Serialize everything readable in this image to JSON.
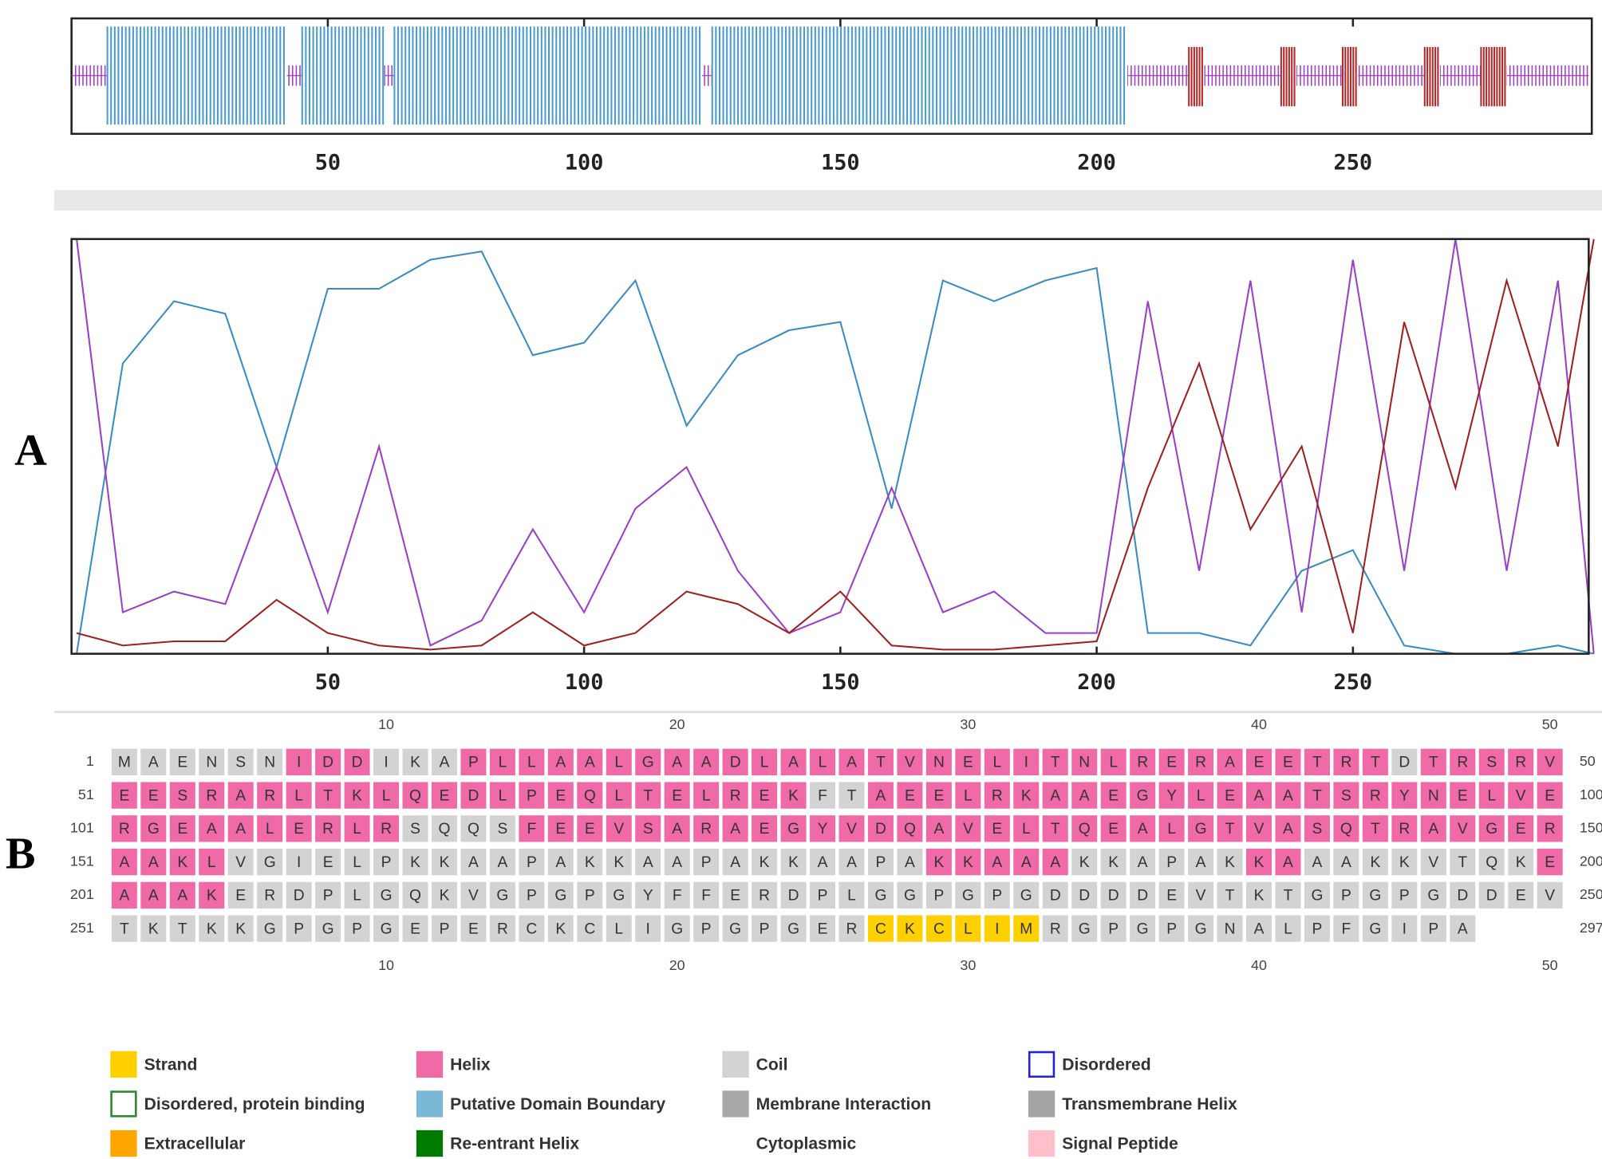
{
  "chart_data": [
    {
      "type": "track",
      "xlim": [
        0,
        296
      ],
      "xticks": [
        50,
        100,
        150,
        200,
        250
      ],
      "baseline_color": "#a040c0",
      "series": [
        {
          "color": "#4a9ccc",
          "ranges": [
            [
              7,
              42
            ],
            [
              45,
              61
            ],
            [
              63,
              123
            ],
            [
              125,
              206
            ]
          ]
        },
        {
          "color": "#b02828",
          "ranges": [
            [
              218,
              221
            ],
            [
              236,
              239
            ],
            [
              248,
              251
            ],
            [
              264,
              267
            ],
            [
              275,
              280
            ]
          ]
        }
      ]
    },
    {
      "type": "line",
      "xlim": [
        0,
        296
      ],
      "ylim": [
        0,
        1
      ],
      "xticks": [
        50,
        100,
        150,
        200,
        250
      ],
      "x": [
        1,
        10,
        20,
        30,
        40,
        50,
        60,
        70,
        80,
        90,
        100,
        110,
        120,
        130,
        140,
        150,
        160,
        170,
        180,
        190,
        200,
        210,
        220,
        230,
        240,
        250,
        260,
        270,
        280,
        290,
        297
      ],
      "series": [
        {
          "color": "#3a8cc0",
          "values": [
            0,
            0.7,
            0.85,
            0.82,
            0.45,
            0.88,
            0.88,
            0.95,
            0.97,
            0.72,
            0.75,
            0.9,
            0.55,
            0.72,
            0.78,
            0.8,
            0.35,
            0.9,
            0.85,
            0.9,
            0.93,
            0.05,
            0.05,
            0.02,
            0.2,
            0.25,
            0.02,
            0,
            0,
            0.02,
            0
          ]
        },
        {
          "color": "#9a40c8",
          "values": [
            1,
            0.1,
            0.15,
            0.12,
            0.45,
            0.1,
            0.5,
            0.02,
            0.08,
            0.3,
            0.1,
            0.35,
            0.45,
            0.2,
            0.05,
            0.1,
            0.4,
            0.1,
            0.15,
            0.05,
            0.05,
            0.85,
            0.2,
            0.9,
            0.1,
            0.95,
            0.2,
            1,
            0.2,
            0.9,
            0
          ]
        },
        {
          "color": "#a02020",
          "values": [
            0.05,
            0.02,
            0.03,
            0.03,
            0.13,
            0.05,
            0.02,
            0.01,
            0.02,
            0.1,
            0.02,
            0.05,
            0.15,
            0.12,
            0.05,
            0.15,
            0.02,
            0.01,
            0.01,
            0.02,
            0.03,
            0.4,
            0.7,
            0.3,
            0.5,
            0.05,
            0.8,
            0.4,
            0.9,
            0.5,
            1
          ]
        }
      ]
    }
  ],
  "panel_labels": [
    "A",
    "B"
  ],
  "sequence": {
    "column_ticks": [
      10,
      20,
      30,
      40,
      50
    ],
    "colors": {
      "H": "#f06aa8",
      "C": "#d3d3d3",
      "E": "#ffd000"
    },
    "rows": [
      {
        "start": 1,
        "end": 50,
        "residues": "MAENSNIDDIKAPLLAALGAADLALATVNELITNLRERAEETRTDTRSRV",
        "ss": "CCCCCCHHHCCCHHHHHHHHHHHHHHHHHHHHHHHHHHHHHHHHCHHHHH"
      },
      {
        "start": 51,
        "end": 100,
        "residues": "EESRARLTKLQEDLPEQLTELREKFTAEELRKAAEGYLEAATSRYNELVE",
        "ss": "HHHHHHHHHHHHHHHHHHHHHHHHCCHHHHHHHHHHHHHHHHHHHHHHHH"
      },
      {
        "start": 101,
        "end": 150,
        "residues": "RGEAALERLRSQQSFEEVSARAEGYVDQAVELTQEALGTVASQTRAVGER",
        "ss": "HHHHHHHHHHCCCCHHHHHHHHHHHHHHHHHHHHHHHHHHHHHHHHHHHH"
      },
      {
        "start": 151,
        "end": 200,
        "residues": "AAKLVGIELPKKAAPAKKAAPAKKAAPAKKAAAKKAPAKKAAAKKVTQKE",
        "ss": "HHHHCCCCCCCCCCCCCCCCCCCCCCCCHHHHHCCCCCCHHCCCCCCCCH"
      },
      {
        "start": 201,
        "end": 250,
        "residues": "AAAKERDPLGQKVGPGPGYFFERDPLGGPGPGDDDDEVTKTGPGPGDDEV",
        "ss": "HHHHCCCCCCCCCCCCCCCCCCCCCCCCCCCCCCCCCCCCCCCCCCCCCC"
      },
      {
        "start": 251,
        "end": 297,
        "residues": "TKTKKGPGPGEPERCKCLIGPGPGERCKCLIMRGPGPGNALPFGIPA",
        "ss": "CCCCCCCCCCCCCCCCCCCCCCCCCCEEEEEECCCCCCCCCCCCCCC"
      }
    ]
  },
  "legend": [
    {
      "label": "Strand",
      "color": "#ffd000",
      "style": "fill"
    },
    {
      "label": "Helix",
      "color": "#f06aa8",
      "style": "fill"
    },
    {
      "label": "Coil",
      "color": "#d3d3d3",
      "style": "fill"
    },
    {
      "label": "Disordered",
      "color": "#2222dd",
      "style": "outline"
    },
    {
      "label": "Disordered, protein binding",
      "color": "#2a8a2a",
      "style": "outline"
    },
    {
      "label": "Putative Domain Boundary",
      "color": "#7ab8d6",
      "style": "fill"
    },
    {
      "label": "Membrane Interaction",
      "color": "#a9a9a9",
      "style": "fill"
    },
    {
      "label": "Transmembrane Helix",
      "color": "#a4a4a4",
      "style": "fill"
    },
    {
      "label": "Extracellular",
      "color": "#ffa500",
      "style": "fill"
    },
    {
      "label": "Re-entrant Helix",
      "color": "#007a00",
      "style": "fill"
    },
    {
      "label": "Cytoplasmic",
      "color": "#ffffff",
      "style": "none"
    },
    {
      "label": "Signal Peptide",
      "color": "#ffc0cb",
      "style": "fill"
    }
  ]
}
